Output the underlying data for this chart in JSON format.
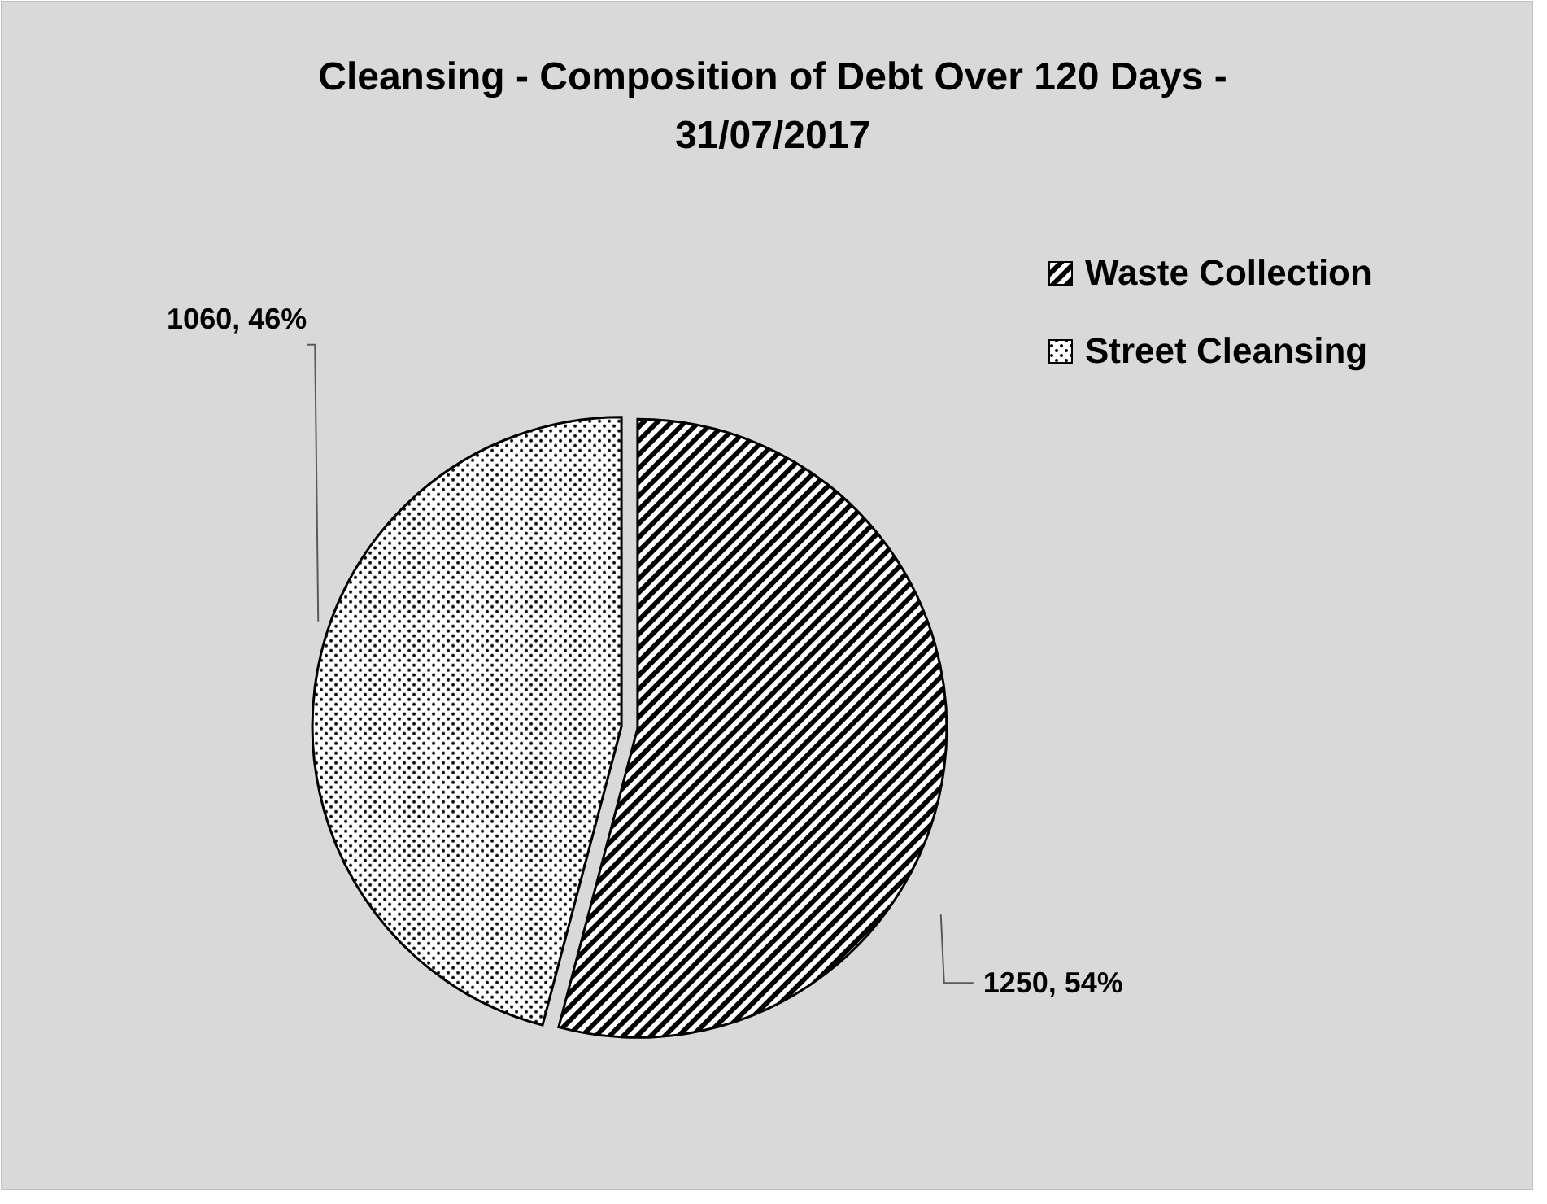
{
  "chart_data": {
    "type": "pie",
    "title": "Cleansing - Composition of Debt Over 120 Days - 31/07/2017",
    "categories": [
      "Waste Collection",
      "Street Cleansing"
    ],
    "values": [
      1250,
      1060
    ],
    "value_labels": [
      "1250, 54%",
      "1060, 46%"
    ],
    "colors": [
      "#000000",
      "#000000"
    ],
    "legend": "top right"
  }
}
